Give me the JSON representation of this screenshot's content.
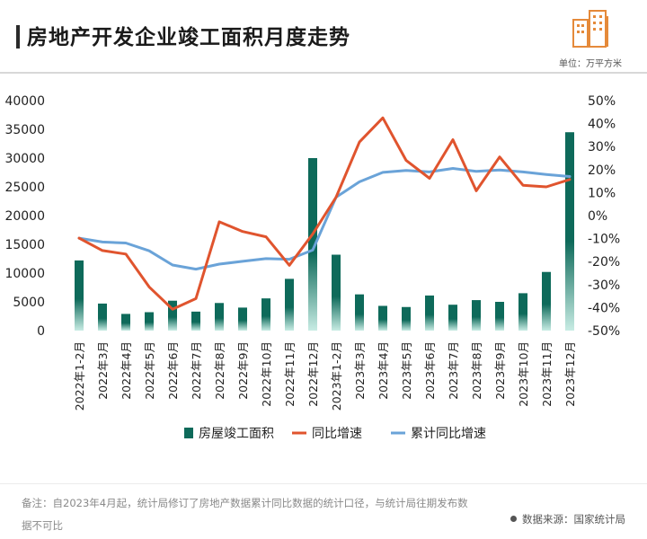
{
  "header": {
    "title": "房地产开发企业竣工面积月度走势",
    "unit": "单位：万平方米"
  },
  "chart_data": {
    "type": "bar",
    "categories": [
      "2022年1-2月",
      "2022年3月",
      "2022年4月",
      "2022年5月",
      "2022年6月",
      "2022年7月",
      "2022年8月",
      "2022年9月",
      "2022年10月",
      "2022年11月",
      "2022年12月",
      "2023年1-2月",
      "2023年3月",
      "2023年4月",
      "2023年5月",
      "2023年6月",
      "2023年7月",
      "2023年8月",
      "2023年9月",
      "2023年10月",
      "2023年11月",
      "2023年12月"
    ],
    "series": [
      {
        "name": "房屋竣工面积",
        "kind": "bar",
        "axis": "left",
        "values": [
          12200,
          4700,
          2900,
          3200,
          5200,
          3300,
          4800,
          4000,
          5600,
          9000,
          30000,
          13200,
          6300,
          4300,
          4100,
          6100,
          4500,
          5300,
          5000,
          6500,
          10200,
          34500
        ]
      },
      {
        "name": "同比增速",
        "kind": "line",
        "axis": "right",
        "values": [
          -9.8,
          -15.2,
          -16.7,
          -31.0,
          -40.7,
          -36.1,
          -2.7,
          -6.9,
          -9.2,
          -21.6,
          -8.0,
          8.0,
          32.0,
          42.5,
          24.0,
          16.2,
          33.0,
          10.8,
          25.5,
          13.2,
          12.5,
          15.7
        ]
      },
      {
        "name": "累计同比增速",
        "kind": "line",
        "axis": "right",
        "values": [
          -9.8,
          -11.5,
          -11.9,
          -15.3,
          -21.5,
          -23.3,
          -21.1,
          -19.9,
          -18.7,
          -19.0,
          -15.0,
          8.0,
          14.7,
          18.8,
          19.6,
          19.0,
          20.5,
          19.2,
          19.8,
          19.0,
          17.9,
          17.0
        ]
      }
    ],
    "y_left": {
      "min": 0,
      "max": 40000,
      "ticks": [
        "0",
        "5000",
        "10000",
        "15000",
        "20000",
        "25000",
        "30000",
        "35000",
        "40000"
      ]
    },
    "y_right": {
      "min": -50,
      "max": 50,
      "ticks": [
        "-50%",
        "-40%",
        "-30%",
        "-20%",
        "-10%",
        "0%",
        "10%",
        "20%",
        "30%",
        "40%",
        "50%"
      ]
    },
    "colors": {
      "bar": "#0e6a5a",
      "bar_light": "#c8ece4",
      "yoy": "#e0542e",
      "cum": "#6aa3d8"
    },
    "legend_position": "bottom",
    "grid": false
  },
  "footer": {
    "note": "备注：自2023年4月起，统计局修订了房地产数据累计同比数据的统计口径，与统计局往期发布数据不可比",
    "source": "数据来源：国家统计局"
  },
  "logo": {
    "icon": "building-logo-icon",
    "color": "#e58a3a"
  }
}
